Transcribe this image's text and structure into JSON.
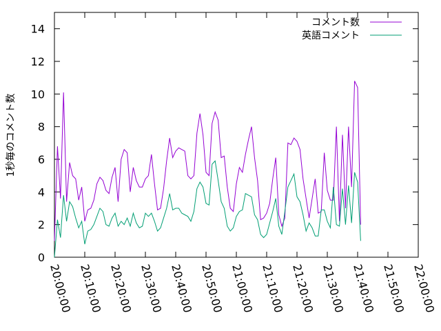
{
  "chart_data": {
    "type": "line",
    "title": "",
    "xlabel": "",
    "ylabel": "1秒毎のコメント数",
    "ylim": [
      0,
      15
    ],
    "yticks": [
      0,
      2,
      4,
      6,
      8,
      10,
      12,
      14
    ],
    "xlim": [
      "20:00:00",
      "22:00:00"
    ],
    "xticks": [
      "20:00:00",
      "20:10:00",
      "20:20:00",
      "20:30:00",
      "20:40:00",
      "20:50:00",
      "21:00:00",
      "21:10:00",
      "21:20:00",
      "21:30:00",
      "21:40:00",
      "21:50:00",
      "22:00:00"
    ],
    "grid": false,
    "legend": "top-right",
    "series": [
      {
        "name": "コメント数",
        "color": "#9400d3",
        "points": [
          [
            "20:00:00",
            1.0
          ],
          [
            "20:01:00",
            6.8
          ],
          [
            "20:02:00",
            3.6
          ],
          [
            "20:03:00",
            10.1
          ],
          [
            "20:04:00",
            3.4
          ],
          [
            "20:05:00",
            5.8
          ],
          [
            "20:06:00",
            5.0
          ],
          [
            "20:07:00",
            4.8
          ],
          [
            "20:08:00",
            3.5
          ],
          [
            "20:09:00",
            4.3
          ],
          [
            "20:10:00",
            2.2
          ],
          [
            "20:11:00",
            2.9
          ],
          [
            "20:12:00",
            3.0
          ],
          [
            "20:13:00",
            3.5
          ],
          [
            "20:14:00",
            4.5
          ],
          [
            "20:15:00",
            4.9
          ],
          [
            "20:16:00",
            4.7
          ],
          [
            "20:17:00",
            4.1
          ],
          [
            "20:18:00",
            3.9
          ],
          [
            "20:19:00",
            4.9
          ],
          [
            "20:20:00",
            5.5
          ],
          [
            "20:21:00",
            3.4
          ],
          [
            "20:22:00",
            6.0
          ],
          [
            "20:23:00",
            6.6
          ],
          [
            "20:24:00",
            6.4
          ],
          [
            "20:25:00",
            4.0
          ],
          [
            "20:26:00",
            5.5
          ],
          [
            "20:27:00",
            4.7
          ],
          [
            "20:28:00",
            4.3
          ],
          [
            "20:29:00",
            4.3
          ],
          [
            "20:30:00",
            4.8
          ],
          [
            "20:31:00",
            5.0
          ],
          [
            "20:32:00",
            6.3
          ],
          [
            "20:33:00",
            4.5
          ],
          [
            "20:34:00",
            2.9
          ],
          [
            "20:35:00",
            3.0
          ],
          [
            "20:36:00",
            4.2
          ],
          [
            "20:37:00",
            5.9
          ],
          [
            "20:38:00",
            7.3
          ],
          [
            "20:39:00",
            6.1
          ],
          [
            "20:40:00",
            6.5
          ],
          [
            "20:41:00",
            6.7
          ],
          [
            "20:42:00",
            6.6
          ],
          [
            "20:43:00",
            6.5
          ],
          [
            "20:44:00",
            5.0
          ],
          [
            "20:45:00",
            4.8
          ],
          [
            "20:46:00",
            5.0
          ],
          [
            "20:47:00",
            7.6
          ],
          [
            "20:48:00",
            8.8
          ],
          [
            "20:49:00",
            7.5
          ],
          [
            "20:50:00",
            5.2
          ],
          [
            "20:51:00",
            5.0
          ],
          [
            "20:52:00",
            8.2
          ],
          [
            "20:53:00",
            8.9
          ],
          [
            "20:54:00",
            8.4
          ],
          [
            "20:55:00",
            6.1
          ],
          [
            "20:56:00",
            6.2
          ],
          [
            "20:57:00",
            4.3
          ],
          [
            "20:58:00",
            3.0
          ],
          [
            "20:59:00",
            2.8
          ],
          [
            "21:00:00",
            4.5
          ],
          [
            "21:01:00",
            5.5
          ],
          [
            "21:02:00",
            5.2
          ],
          [
            "21:03:00",
            6.3
          ],
          [
            "21:04:00",
            7.2
          ],
          [
            "21:05:00",
            8.0
          ],
          [
            "21:06:00",
            6.1
          ],
          [
            "21:07:00",
            4.7
          ],
          [
            "21:08:00",
            2.3
          ],
          [
            "21:09:00",
            2.4
          ],
          [
            "21:10:00",
            2.7
          ],
          [
            "21:11:00",
            3.3
          ],
          [
            "21:12:00",
            4.8
          ],
          [
            "21:13:00",
            6.1
          ],
          [
            "21:14:00",
            2.6
          ],
          [
            "21:15:00",
            1.9
          ],
          [
            "21:16:00",
            2.4
          ],
          [
            "21:17:00",
            7.0
          ],
          [
            "21:18:00",
            6.9
          ],
          [
            "21:19:00",
            7.3
          ],
          [
            "21:20:00",
            7.1
          ],
          [
            "21:21:00",
            6.6
          ],
          [
            "21:22:00",
            4.8
          ],
          [
            "21:23:00",
            3.6
          ],
          [
            "21:24:00",
            2.4
          ],
          [
            "21:25:00",
            3.6
          ],
          [
            "21:26:00",
            4.8
          ],
          [
            "21:27:00",
            2.7
          ],
          [
            "21:28:00",
            2.8
          ],
          [
            "21:29:00",
            6.4
          ],
          [
            "21:30:00",
            4.1
          ],
          [
            "21:31:00",
            3.5
          ],
          [
            "21:32:00",
            3.5
          ],
          [
            "21:33:00",
            8.0
          ],
          [
            "21:34:00",
            2.2
          ],
          [
            "21:35:00",
            7.5
          ],
          [
            "21:36:00",
            3.0
          ],
          [
            "21:37:00",
            8.0
          ],
          [
            "21:38:00",
            4.3
          ],
          [
            "21:39:00",
            10.8
          ],
          [
            "21:40:00",
            10.4
          ],
          [
            "21:41:00",
            2.0
          ]
        ]
      },
      {
        "name": "英語コメント",
        "color": "#009e73",
        "points": [
          [
            "20:00:00",
            0.0
          ],
          [
            "20:01:00",
            2.3
          ],
          [
            "20:02:00",
            1.2
          ],
          [
            "20:03:00",
            3.8
          ],
          [
            "20:04:00",
            2.2
          ],
          [
            "20:05:00",
            3.4
          ],
          [
            "20:06:00",
            3.1
          ],
          [
            "20:07:00",
            2.4
          ],
          [
            "20:08:00",
            1.8
          ],
          [
            "20:09:00",
            2.2
          ],
          [
            "20:10:00",
            0.8
          ],
          [
            "20:11:00",
            1.6
          ],
          [
            "20:12:00",
            1.7
          ],
          [
            "20:13:00",
            2.0
          ],
          [
            "20:14:00",
            2.5
          ],
          [
            "20:15:00",
            3.0
          ],
          [
            "20:16:00",
            2.8
          ],
          [
            "20:17:00",
            2.0
          ],
          [
            "20:18:00",
            1.9
          ],
          [
            "20:19:00",
            2.4
          ],
          [
            "20:20:00",
            2.7
          ],
          [
            "20:21:00",
            1.9
          ],
          [
            "20:22:00",
            2.2
          ],
          [
            "20:23:00",
            2.0
          ],
          [
            "20:24:00",
            2.4
          ],
          [
            "20:25:00",
            1.9
          ],
          [
            "20:26:00",
            2.7
          ],
          [
            "20:27:00",
            2.1
          ],
          [
            "20:28:00",
            1.8
          ],
          [
            "20:29:00",
            1.9
          ],
          [
            "20:30:00",
            2.7
          ],
          [
            "20:31:00",
            2.5
          ],
          [
            "20:32:00",
            2.7
          ],
          [
            "20:33:00",
            2.2
          ],
          [
            "20:34:00",
            1.6
          ],
          [
            "20:35:00",
            1.8
          ],
          [
            "20:36:00",
            2.4
          ],
          [
            "20:37:00",
            3.0
          ],
          [
            "20:38:00",
            3.9
          ],
          [
            "20:39:00",
            2.9
          ],
          [
            "20:40:00",
            3.0
          ],
          [
            "20:41:00",
            3.0
          ],
          [
            "20:42:00",
            2.7
          ],
          [
            "20:43:00",
            2.6
          ],
          [
            "20:44:00",
            2.5
          ],
          [
            "20:45:00",
            2.2
          ],
          [
            "20:46:00",
            2.8
          ],
          [
            "20:47:00",
            4.2
          ],
          [
            "20:48:00",
            4.6
          ],
          [
            "20:49:00",
            4.3
          ],
          [
            "20:50:00",
            3.3
          ],
          [
            "20:51:00",
            3.2
          ],
          [
            "20:52:00",
            5.7
          ],
          [
            "20:53:00",
            5.9
          ],
          [
            "20:54:00",
            4.7
          ],
          [
            "20:55:00",
            3.4
          ],
          [
            "20:56:00",
            3.0
          ],
          [
            "20:57:00",
            1.9
          ],
          [
            "20:58:00",
            1.6
          ],
          [
            "20:59:00",
            1.8
          ],
          [
            "21:00:00",
            2.5
          ],
          [
            "21:01:00",
            2.8
          ],
          [
            "21:02:00",
            2.9
          ],
          [
            "21:03:00",
            3.9
          ],
          [
            "21:04:00",
            3.8
          ],
          [
            "21:05:00",
            3.7
          ],
          [
            "21:06:00",
            2.6
          ],
          [
            "21:07:00",
            2.3
          ],
          [
            "21:08:00",
            1.4
          ],
          [
            "21:09:00",
            1.2
          ],
          [
            "21:10:00",
            1.4
          ],
          [
            "21:11:00",
            2.1
          ],
          [
            "21:12:00",
            2.8
          ],
          [
            "21:13:00",
            3.6
          ],
          [
            "21:14:00",
            1.9
          ],
          [
            "21:15:00",
            1.4
          ],
          [
            "21:16:00",
            2.8
          ],
          [
            "21:17:00",
            4.3
          ],
          [
            "21:18:00",
            4.7
          ],
          [
            "21:19:00",
            5.1
          ],
          [
            "21:20:00",
            3.7
          ],
          [
            "21:21:00",
            3.4
          ],
          [
            "21:22:00",
            2.6
          ],
          [
            "21:23:00",
            1.6
          ],
          [
            "21:24:00",
            2.1
          ],
          [
            "21:25:00",
            1.8
          ],
          [
            "21:26:00",
            1.3
          ],
          [
            "21:27:00",
            1.3
          ],
          [
            "21:28:00",
            2.9
          ],
          [
            "21:29:00",
            2.9
          ],
          [
            "21:30:00",
            2.2
          ],
          [
            "21:31:00",
            1.8
          ],
          [
            "21:32:00",
            4.3
          ],
          [
            "21:33:00",
            2.0
          ],
          [
            "21:34:00",
            1.9
          ],
          [
            "21:35:00",
            4.2
          ],
          [
            "21:36:00",
            2.0
          ],
          [
            "21:37:00",
            4.4
          ],
          [
            "21:38:00",
            2.1
          ],
          [
            "21:39:00",
            5.2
          ],
          [
            "21:40:00",
            4.6
          ],
          [
            "21:41:00",
            1.0
          ]
        ]
      }
    ]
  }
}
